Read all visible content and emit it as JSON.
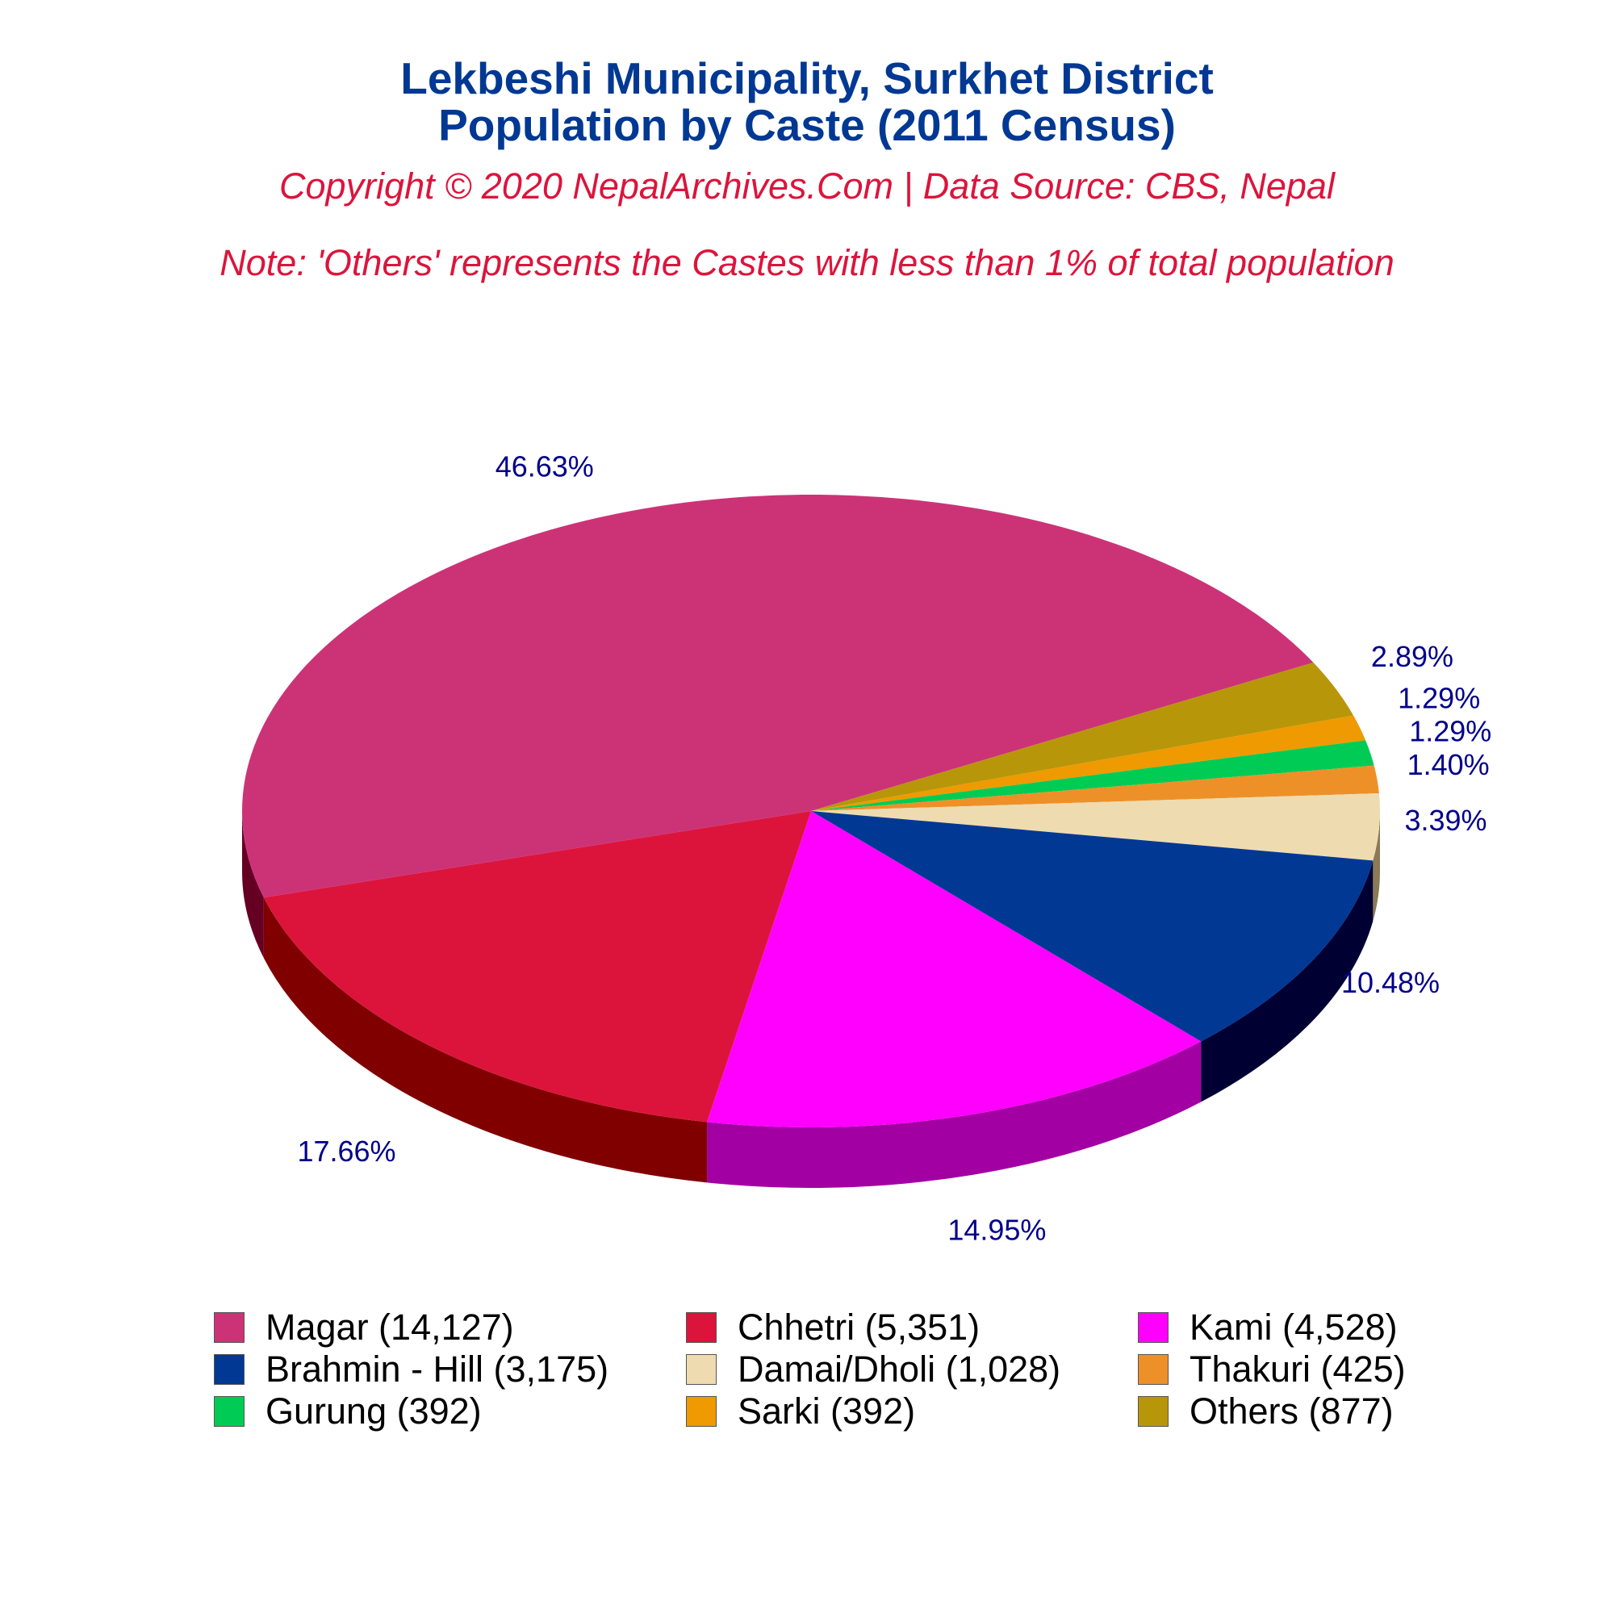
{
  "header": {
    "title_line1": "Lekbeshi Municipality, Surkhet District",
    "title_line2": "Population by Caste (2011 Census)",
    "copyright": "Copyright © 2020 NepalArchives.Com | Data Source: CBS, Nepal",
    "note": "Note: 'Others' represents the Castes with less than 1% of total population"
  },
  "chart_data": {
    "type": "pie",
    "style": "3d",
    "legend_position": "bottom",
    "slices": [
      {
        "label": "Magar (14,127)",
        "value": 14127,
        "percent_label": "46.63%",
        "color": "#CC3377",
        "side_color": "#660022"
      },
      {
        "label": "Chhetri (5,351)",
        "value": 5351,
        "percent_label": "17.66%",
        "color": "#DC143C",
        "side_color": "#800000"
      },
      {
        "label": "Kami (4,528)",
        "value": 4528,
        "percent_label": "14.95%",
        "color": "#FF00FF",
        "side_color": "#A300A3"
      },
      {
        "label": "Brahmin - Hill (3,175)",
        "value": 3175,
        "percent_label": "10.48%",
        "color": "#003893",
        "side_color": "#000033"
      },
      {
        "label": "Damai/Dholi (1,028)",
        "value": 1028,
        "percent_label": "3.39%",
        "color": "#EEDBB0",
        "side_color": "#8A7A55"
      },
      {
        "label": "Thakuri (425)",
        "value": 425,
        "percent_label": "1.40%",
        "color": "#EE9028",
        "side_color": "#7A4A10"
      },
      {
        "label": "Gurung (392)",
        "value": 392,
        "percent_label": "1.29%",
        "color": "#00CC55",
        "side_color": "#006628"
      },
      {
        "label": "Sarki (392)",
        "value": 392,
        "percent_label": "1.29%",
        "color": "#EE9A00",
        "side_color": "#7A5000"
      },
      {
        "label": "Others (877)",
        "value": 877,
        "percent_label": "2.89%",
        "color": "#B8960A",
        "side_color": "#5C4B05"
      }
    ]
  }
}
